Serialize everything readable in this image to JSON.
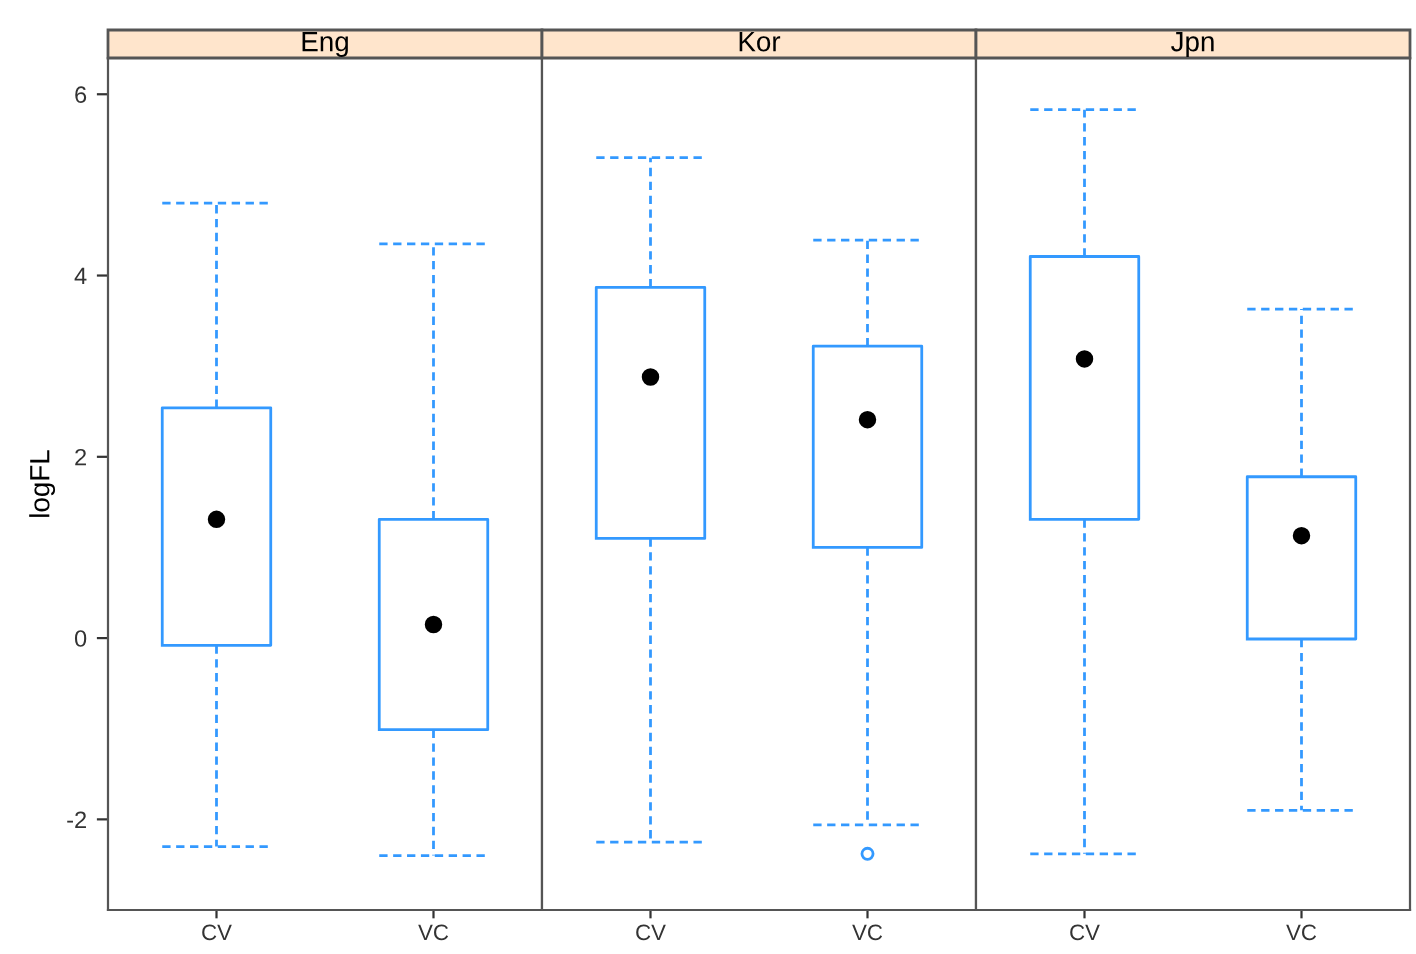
{
  "chart_data": [
    {
      "type": "box",
      "title": "Eng",
      "ylabel": "logFL",
      "categories": [
        "CV",
        "VC"
      ],
      "color": "#3399ff",
      "ylim": [
        -3,
        6.4
      ],
      "yticks": [
        -2,
        0,
        2,
        4,
        6
      ],
      "boxes": [
        {
          "low": -2.3,
          "q1": -0.08,
          "median": 1.31,
          "q3": 2.54,
          "high": 4.8
        },
        {
          "low": -2.4,
          "q1": -1.01,
          "median": 0.15,
          "q3": 1.31,
          "high": 4.35
        }
      ]
    },
    {
      "type": "box",
      "title": "Kor",
      "categories": [
        "CV",
        "VC"
      ],
      "color": "#3399ff",
      "ylim": [
        -3,
        6.4
      ],
      "yticks": [
        -2,
        0,
        2,
        4,
        6
      ],
      "tick_labels": "x",
      "boxes": [
        {
          "low": -2.25,
          "q1": 1.1,
          "median": 2.88,
          "q3": 3.87,
          "high": 5.3
        },
        {
          "low": -2.06,
          "q1": 1.0,
          "median": 2.41,
          "q3": 3.22,
          "high": 4.39,
          "outliers": [
            -2.38
          ]
        }
      ]
    },
    {
      "type": "box",
      "title": "Jpn",
      "categories": [
        "CV",
        "VC"
      ],
      "color": "#3399ff",
      "ylim": [
        -3,
        6.4
      ],
      "yticks": [
        -2,
        0,
        2,
        4,
        6
      ],
      "tick_labels": "x",
      "boxes": [
        {
          "low": -2.38,
          "q1": 1.31,
          "median": 3.08,
          "q3": 4.21,
          "high": 5.83
        },
        {
          "low": -1.9,
          "q1": -0.01,
          "median": 1.13,
          "q3": 1.78,
          "high": 3.63
        }
      ]
    }
  ]
}
